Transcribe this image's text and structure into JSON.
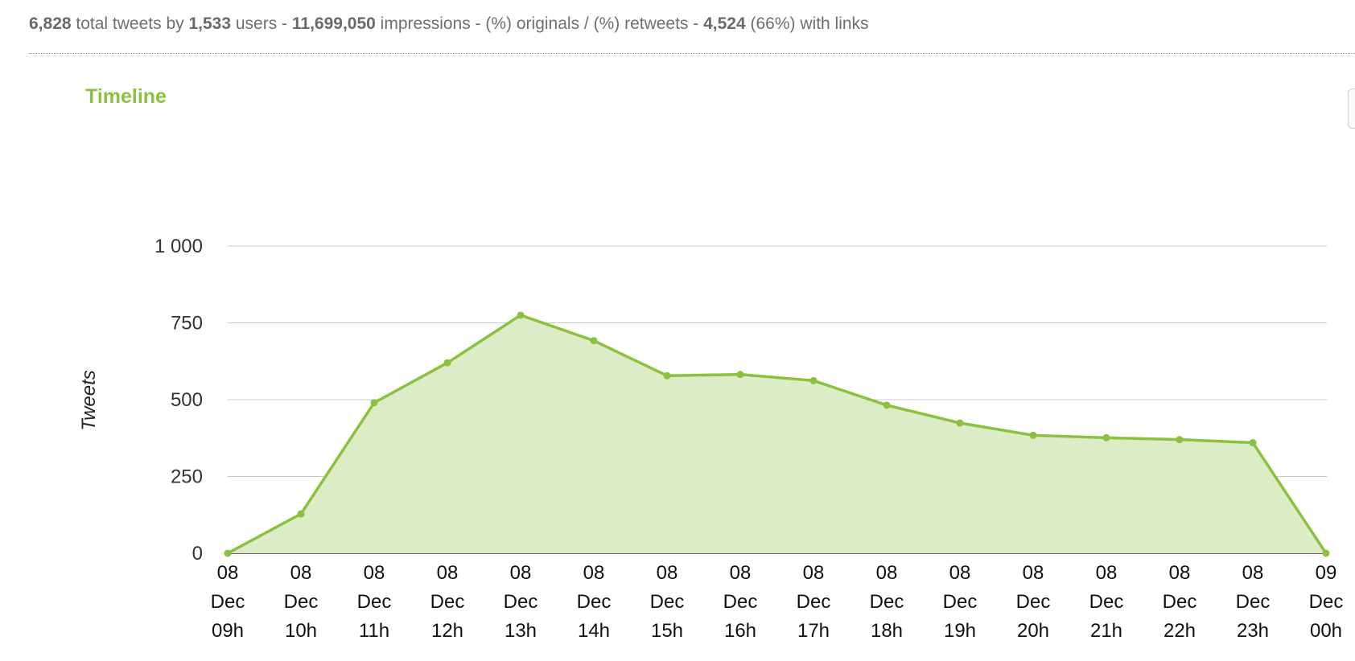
{
  "stats": {
    "total_tweets": "6,828",
    "total_tweets_suffix": " total tweets by ",
    "users": "1,533",
    "users_suffix": " users - ",
    "impressions": "11,699,050",
    "impressions_suffix": " impressions - (%) originals / (%) retweets - ",
    "links": "4,524",
    "links_suffix": " (66%) with links"
  },
  "colors": {
    "accent": "#8cc03f",
    "area_fill": "#dcecc6",
    "grid": "#c8c8c8"
  },
  "chart_data": {
    "type": "area",
    "title": "Timeline",
    "ylabel": "Tweets",
    "xlabel": "",
    "ylim": [
      0,
      1000
    ],
    "yticks": [
      0,
      250,
      500,
      750,
      1000
    ],
    "ytick_labels": [
      "0",
      "250",
      "500",
      "750",
      "1 000"
    ],
    "grid": true,
    "categories": [
      [
        "08",
        "Dec",
        "09h"
      ],
      [
        "08",
        "Dec",
        "10h"
      ],
      [
        "08",
        "Dec",
        "11h"
      ],
      [
        "08",
        "Dec",
        "12h"
      ],
      [
        "08",
        "Dec",
        "13h"
      ],
      [
        "08",
        "Dec",
        "14h"
      ],
      [
        "08",
        "Dec",
        "15h"
      ],
      [
        "08",
        "Dec",
        "16h"
      ],
      [
        "08",
        "Dec",
        "17h"
      ],
      [
        "08",
        "Dec",
        "18h"
      ],
      [
        "08",
        "Dec",
        "19h"
      ],
      [
        "08",
        "Dec",
        "20h"
      ],
      [
        "08",
        "Dec",
        "21h"
      ],
      [
        "08",
        "Dec",
        "22h"
      ],
      [
        "08",
        "Dec",
        "23h"
      ],
      [
        "09",
        "Dec",
        "00h"
      ]
    ],
    "series": [
      {
        "values": [
          0,
          128,
          490,
          620,
          775,
          692,
          578,
          582,
          562,
          482,
          424,
          384,
          376,
          370,
          360,
          0
        ]
      }
    ]
  }
}
